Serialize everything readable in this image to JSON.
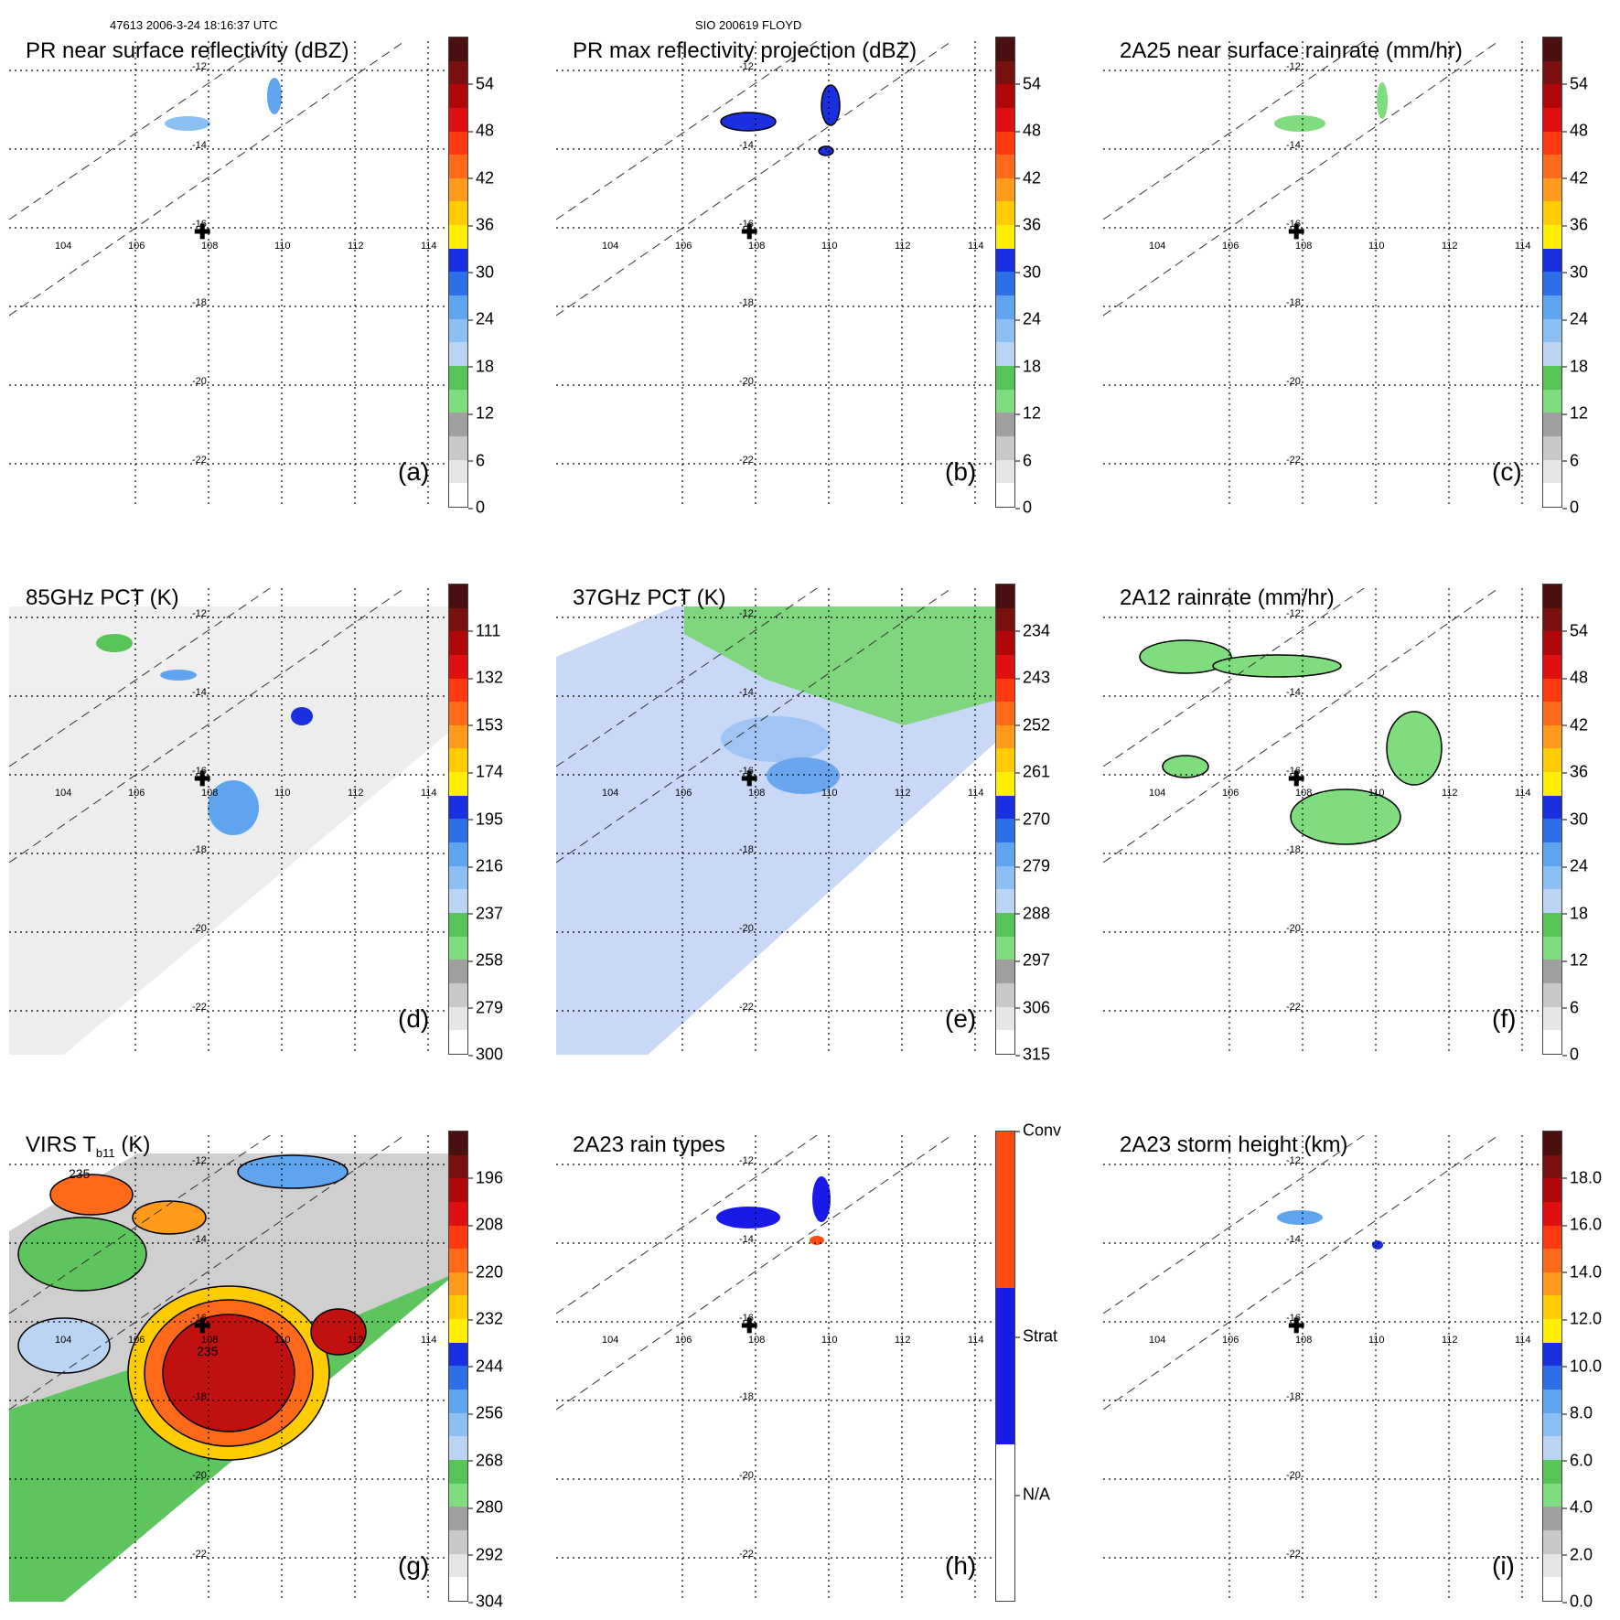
{
  "header": {
    "left": "47613 2006-3-24 18:16:37 UTC",
    "center": "SIO 200619 FLOYD"
  },
  "axes": {
    "lon_labels": [
      "104",
      "106",
      "108",
      "110",
      "112",
      "114"
    ],
    "lat_labels": [
      "-12",
      "-14",
      "-16",
      "-18",
      "-20",
      "-22"
    ]
  },
  "colors": {
    "scale": [
      "#ffffff",
      "#e6e6e6",
      "#c8c8c8",
      "#a0a0a0",
      "#7fdc7f",
      "#56c456",
      "#bcd4f4",
      "#8cc0f4",
      "#5ea4ee",
      "#2e6fe8",
      "#1a2fe0",
      "#ffee00",
      "#ffcc00",
      "#ff9a1a",
      "#ff6a1a",
      "#ff3a10",
      "#e01010",
      "#b00808",
      "#7a1010",
      "#4a1010"
    ],
    "rain_type": [
      "#ffffff",
      "#1a1ae8",
      "#ff4a10"
    ]
  },
  "panels": [
    {
      "id": "a",
      "title": "PR near surface reflectivity (dBZ)",
      "label": "(a)",
      "cbar_ticks": [
        "0",
        "6",
        "12",
        "18",
        "24",
        "30",
        "36",
        "42",
        "48",
        "54"
      ]
    },
    {
      "id": "b",
      "title": "PR max reflectivity projection (dBZ)",
      "label": "(b)",
      "cbar_ticks": [
        "0",
        "6",
        "12",
        "18",
        "24",
        "30",
        "36",
        "42",
        "48",
        "54"
      ]
    },
    {
      "id": "c",
      "title": "2A25 near surface rainrate (mm/hr)",
      "label": "(c)",
      "cbar_ticks": [
        "0",
        "6",
        "12",
        "18",
        "24",
        "30",
        "36",
        "42",
        "48",
        "54"
      ]
    },
    {
      "id": "d",
      "title": "85GHz PCT (K)",
      "label": "(d)",
      "cbar_ticks": [
        "300",
        "279",
        "258",
        "237",
        "216",
        "195",
        "174",
        "153",
        "132",
        "111"
      ]
    },
    {
      "id": "e",
      "title": "37GHz PCT (K)",
      "label": "(e)",
      "cbar_ticks": [
        "315",
        "306",
        "297",
        "288",
        "279",
        "270",
        "261",
        "252",
        "243",
        "234"
      ]
    },
    {
      "id": "f",
      "title": "2A12 rainrate (mm/hr)",
      "label": "(f)",
      "cbar_ticks": [
        "0",
        "6",
        "12",
        "18",
        "24",
        "30",
        "36",
        "42",
        "48",
        "54"
      ]
    },
    {
      "id": "g",
      "title": "VIRS T",
      "title_sub": "b11",
      "title_unit": " (K)",
      "label": "(g)",
      "cbar_ticks": [
        "304",
        "292",
        "280",
        "268",
        "256",
        "244",
        "232",
        "220",
        "208",
        "196"
      ],
      "annotations": [
        "235",
        "235"
      ]
    },
    {
      "id": "h",
      "title": "2A23 rain types",
      "label": "(h)",
      "cbar_ticks": [
        "N/A",
        "Strat",
        "Conv"
      ]
    },
    {
      "id": "i",
      "title": "2A23 storm height (km)",
      "label": "(i)",
      "cbar_ticks": [
        "0.0",
        "2.0",
        "4.0",
        "6.0",
        "8.0",
        "10.0",
        "12.0",
        "14.0",
        "16.0",
        "18.0"
      ]
    }
  ]
}
